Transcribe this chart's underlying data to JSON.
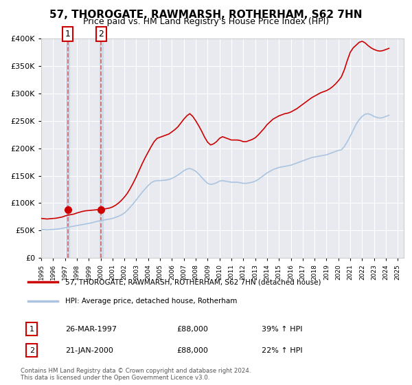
{
  "title": "57, THOROGATE, RAWMARSH, ROTHERHAM, S62 7HN",
  "subtitle": "Price paid vs. HM Land Registry's House Price Index (HPI)",
  "xlabel": "",
  "ylabel": "",
  "ylim": [
    0,
    400000
  ],
  "xlim_start": 1995.0,
  "xlim_end": 2025.5,
  "yticks": [
    0,
    50000,
    100000,
    150000,
    200000,
    250000,
    300000,
    350000,
    400000
  ],
  "ytick_labels": [
    "£0",
    "£50K",
    "£100K",
    "£150K",
    "£200K",
    "£250K",
    "£300K",
    "£350K",
    "£400K"
  ],
  "background_color": "#ffffff",
  "plot_bg_color": "#e8eaf0",
  "grid_color": "#ffffff",
  "hpi_line_color": "#aac4e0",
  "price_line_color": "#cc0000",
  "vline_color": "#dd4444",
  "sale1_x": 1997.23,
  "sale1_y": 88000,
  "sale2_x": 2000.05,
  "sale2_y": 88000,
  "sale_marker_color": "#cc0000",
  "legend_label_red": "57, THOROGATE, RAWMARSH, ROTHERHAM, S62 7HN (detached house)",
  "legend_label_blue": "HPI: Average price, detached house, Rotherham",
  "transaction1_num": "1",
  "transaction1_date": "26-MAR-1997",
  "transaction1_price": "£88,000",
  "transaction1_hpi": "39% ↑ HPI",
  "transaction2_num": "2",
  "transaction2_date": "21-JAN-2000",
  "transaction2_price": "£88,000",
  "transaction2_hpi": "22% ↑ HPI",
  "footer": "Contains HM Land Registry data © Crown copyright and database right 2024.\nThis data is licensed under the Open Government Licence v3.0.",
  "hpi_data_x": [
    1995.0,
    1995.25,
    1995.5,
    1995.75,
    1996.0,
    1996.25,
    1996.5,
    1996.75,
    1997.0,
    1997.25,
    1997.5,
    1997.75,
    1998.0,
    1998.25,
    1998.5,
    1998.75,
    1999.0,
    1999.25,
    1999.5,
    1999.75,
    2000.0,
    2000.25,
    2000.5,
    2000.75,
    2001.0,
    2001.25,
    2001.5,
    2001.75,
    2002.0,
    2002.25,
    2002.5,
    2002.75,
    2003.0,
    2003.25,
    2003.5,
    2003.75,
    2004.0,
    2004.25,
    2004.5,
    2004.75,
    2005.0,
    2005.25,
    2005.5,
    2005.75,
    2006.0,
    2006.25,
    2006.5,
    2006.75,
    2007.0,
    2007.25,
    2007.5,
    2007.75,
    2008.0,
    2008.25,
    2008.5,
    2008.75,
    2009.0,
    2009.25,
    2009.5,
    2009.75,
    2010.0,
    2010.25,
    2010.5,
    2010.75,
    2011.0,
    2011.25,
    2011.5,
    2011.75,
    2012.0,
    2012.25,
    2012.5,
    2012.75,
    2013.0,
    2013.25,
    2013.5,
    2013.75,
    2014.0,
    2014.25,
    2014.5,
    2014.75,
    2015.0,
    2015.25,
    2015.5,
    2015.75,
    2016.0,
    2016.25,
    2016.5,
    2016.75,
    2017.0,
    2017.25,
    2017.5,
    2017.75,
    2018.0,
    2018.25,
    2018.5,
    2018.75,
    2019.0,
    2019.25,
    2019.5,
    2019.75,
    2020.0,
    2020.25,
    2020.5,
    2020.75,
    2021.0,
    2021.25,
    2021.5,
    2021.75,
    2022.0,
    2022.25,
    2022.5,
    2022.75,
    2023.0,
    2023.25,
    2023.5,
    2023.75,
    2024.0,
    2024.25
  ],
  "hpi_data_y": [
    52000,
    51500,
    51000,
    51500,
    52000,
    52500,
    53000,
    54000,
    55000,
    56000,
    57000,
    58000,
    59000,
    60000,
    61000,
    62000,
    63000,
    64000,
    65500,
    67000,
    68000,
    69000,
    70000,
    71000,
    72000,
    74000,
    76000,
    78500,
    82000,
    87000,
    93000,
    99000,
    106000,
    113000,
    120000,
    126000,
    132000,
    137000,
    140000,
    141000,
    141000,
    141500,
    142000,
    143000,
    145000,
    148000,
    151000,
    155000,
    159000,
    162000,
    163000,
    161000,
    158000,
    153000,
    147000,
    141000,
    136000,
    134000,
    135000,
    137000,
    140000,
    141000,
    140000,
    139000,
    138000,
    138000,
    138000,
    137000,
    136000,
    136000,
    137000,
    138000,
    140000,
    143000,
    147000,
    151000,
    155000,
    158000,
    161000,
    163000,
    165000,
    166000,
    167000,
    168000,
    169000,
    171000,
    173000,
    175000,
    177000,
    179000,
    181000,
    183000,
    184000,
    185000,
    186000,
    187000,
    188000,
    190000,
    192000,
    194000,
    196000,
    197000,
    203000,
    212000,
    222000,
    233000,
    244000,
    252000,
    258000,
    262000,
    263000,
    261000,
    258000,
    256000,
    255000,
    256000,
    258000,
    260000
  ],
  "red_data_x": [
    1995.0,
    1995.25,
    1995.5,
    1995.75,
    1996.0,
    1996.25,
    1996.5,
    1996.75,
    1997.0,
    1997.25,
    1997.5,
    1997.75,
    1998.0,
    1998.25,
    1998.5,
    1998.75,
    1999.0,
    1999.25,
    1999.5,
    1999.75,
    2000.0,
    2000.25,
    2000.5,
    2000.75,
    2001.0,
    2001.25,
    2001.5,
    2001.75,
    2002.0,
    2002.25,
    2002.5,
    2002.75,
    2003.0,
    2003.25,
    2003.5,
    2003.75,
    2004.0,
    2004.25,
    2004.5,
    2004.75,
    2005.0,
    2005.25,
    2005.5,
    2005.75,
    2006.0,
    2006.25,
    2006.5,
    2006.75,
    2007.0,
    2007.25,
    2007.5,
    2007.75,
    2008.0,
    2008.25,
    2008.5,
    2008.75,
    2009.0,
    2009.25,
    2009.5,
    2009.75,
    2010.0,
    2010.25,
    2010.5,
    2010.75,
    2011.0,
    2011.25,
    2011.5,
    2011.75,
    2012.0,
    2012.25,
    2012.5,
    2012.75,
    2013.0,
    2013.25,
    2013.5,
    2013.75,
    2014.0,
    2014.25,
    2014.5,
    2014.75,
    2015.0,
    2015.25,
    2015.5,
    2015.75,
    2016.0,
    2016.25,
    2016.5,
    2016.75,
    2017.0,
    2017.25,
    2017.5,
    2017.75,
    2018.0,
    2018.25,
    2018.5,
    2018.75,
    2019.0,
    2019.25,
    2019.5,
    2019.75,
    2020.0,
    2020.25,
    2020.5,
    2020.75,
    2021.0,
    2021.25,
    2021.5,
    2021.75,
    2022.0,
    2022.25,
    2022.5,
    2022.75,
    2023.0,
    2023.25,
    2023.5,
    2023.75,
    2024.0,
    2024.25
  ],
  "red_data_y": [
    72000,
    71500,
    71000,
    71500,
    72000,
    72500,
    73500,
    74500,
    76500,
    78000,
    79000,
    80000,
    82000,
    83500,
    85000,
    86000,
    86500,
    87000,
    87500,
    88000,
    88500,
    89000,
    90000,
    91000,
    93000,
    96000,
    100000,
    105000,
    111000,
    118000,
    127000,
    137000,
    148000,
    160000,
    172000,
    183000,
    193000,
    203000,
    212000,
    218000,
    220000,
    222000,
    224000,
    226000,
    230000,
    234000,
    239000,
    246000,
    253000,
    259000,
    263000,
    258000,
    250000,
    241000,
    231000,
    220000,
    211000,
    206000,
    208000,
    212000,
    218000,
    221000,
    219000,
    217000,
    215000,
    215000,
    215000,
    214000,
    212000,
    212000,
    214000,
    216000,
    219000,
    224000,
    230000,
    236000,
    243000,
    248000,
    253000,
    256000,
    259000,
    261000,
    263000,
    264000,
    266000,
    269000,
    272000,
    276000,
    280000,
    284000,
    288000,
    292000,
    295000,
    298000,
    301000,
    303000,
    305000,
    308000,
    312000,
    317000,
    323000,
    330000,
    343000,
    360000,
    375000,
    383000,
    388000,
    393000,
    395000,
    392000,
    387000,
    383000,
    380000,
    378000,
    377000,
    378000,
    380000,
    382000
  ]
}
